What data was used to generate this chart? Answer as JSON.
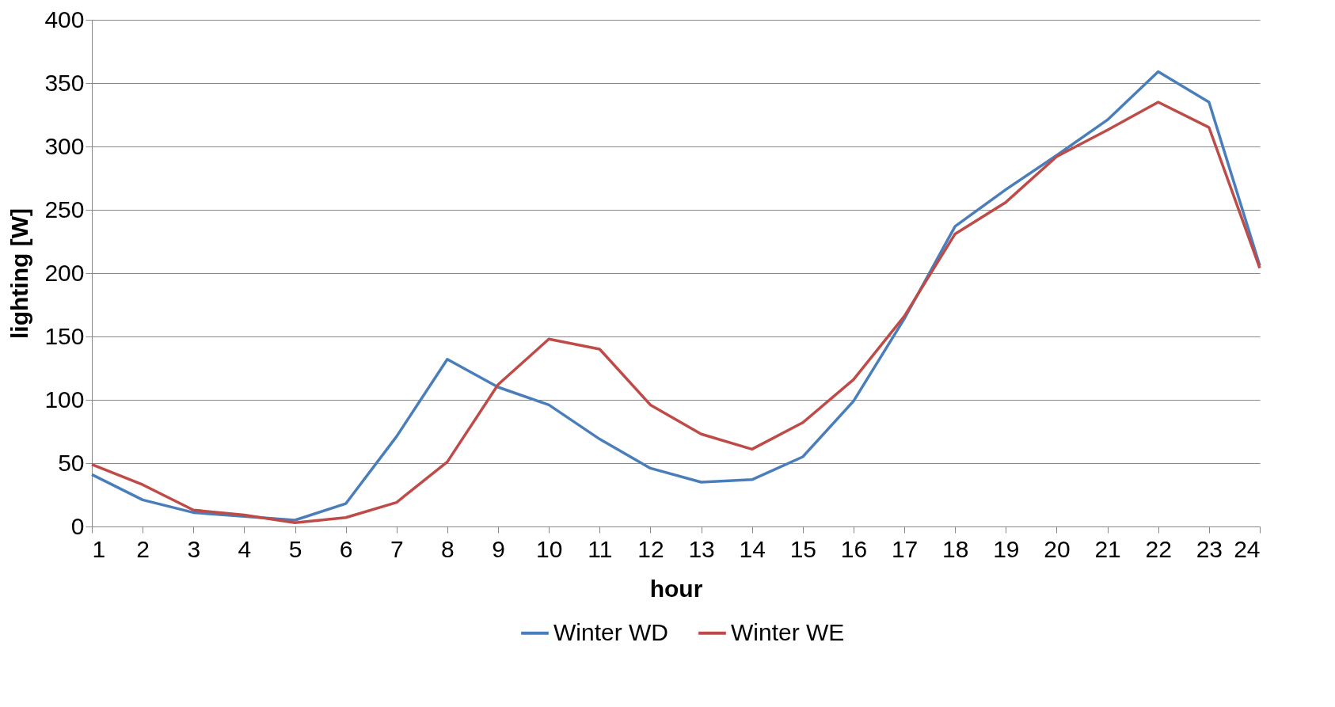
{
  "chart_data": {
    "type": "line",
    "xlabel": "hour",
    "ylabel": "lighting [W]",
    "x": [
      1,
      2,
      3,
      4,
      5,
      6,
      7,
      8,
      9,
      10,
      11,
      12,
      13,
      14,
      15,
      16,
      17,
      18,
      19,
      20,
      21,
      22,
      23,
      24
    ],
    "xlim": [
      1,
      24
    ],
    "xticks": [
      1,
      2,
      3,
      4,
      5,
      6,
      7,
      8,
      9,
      10,
      11,
      12,
      13,
      14,
      15,
      16,
      17,
      18,
      19,
      20,
      21,
      22,
      23,
      24
    ],
    "ylim": [
      0,
      400
    ],
    "yticks": [
      0,
      50,
      100,
      150,
      200,
      250,
      300,
      350,
      400
    ],
    "grid": "y",
    "legend": "bottom",
    "series": [
      {
        "name": "Winter WD",
        "color": "#4a7ebb",
        "values": [
          41,
          21,
          11,
          8,
          5,
          18,
          71,
          132,
          110,
          96,
          69,
          46,
          35,
          37,
          55,
          99,
          164,
          237,
          266,
          293,
          321,
          359,
          335,
          206
        ]
      },
      {
        "name": "Winter WE",
        "color": "#be4b48",
        "values": [
          49,
          33,
          13,
          9,
          3,
          7,
          19,
          51,
          112,
          148,
          140,
          96,
          73,
          61,
          82,
          116,
          166,
          231,
          256,
          292,
          313,
          335,
          315,
          204
        ]
      }
    ]
  }
}
